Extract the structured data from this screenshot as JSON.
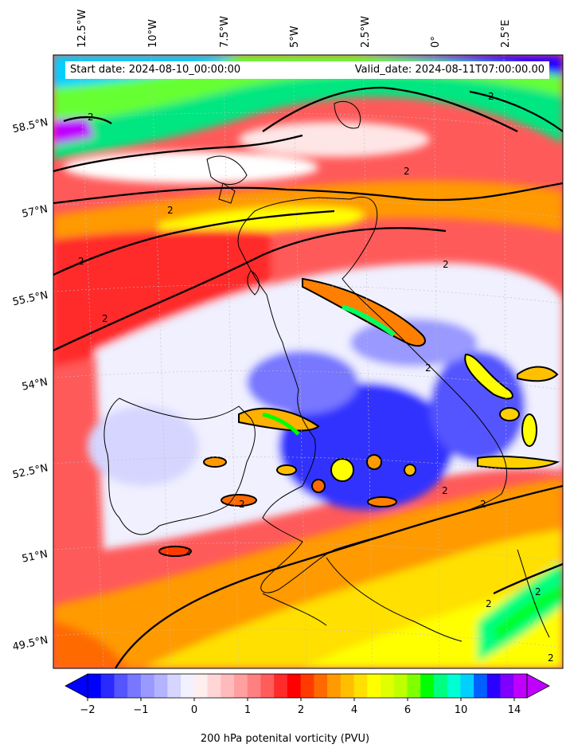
{
  "map": {
    "start_date": "Start date: 2024-08-10_00:00:00",
    "valid_date": "Valid_date: 2024-08-11T07:00:00.00",
    "lon_labels": [
      "12.5°W",
      "10°W",
      "7.5°W",
      "5°W",
      "2.5°W",
      "0°",
      "2.5°E"
    ],
    "lat_labels": [
      "58.5°N",
      "57°N",
      "55.5°N",
      "54°N",
      "52.5°N",
      "51°N",
      "49.5°N"
    ],
    "contour_label": "2"
  },
  "colorbar": {
    "title": "200 hPa potenital vorticity (PVU)",
    "tick_labels": [
      "−2",
      "−1",
      "0",
      "1",
      "2",
      "4",
      "6",
      "10",
      "14"
    ],
    "colors": [
      "#0000ff",
      "#2a2aff",
      "#5555ff",
      "#7777ff",
      "#9999ff",
      "#b3b3ff",
      "#d5d5ff",
      "#f1f1ff",
      "#ffeeee",
      "#ffd6d6",
      "#ffbbbb",
      "#ff9f9f",
      "#ff8080",
      "#ff5c5c",
      "#ff2a2a",
      "#ff0000",
      "#ff3a00",
      "#ff6a00",
      "#ff9a00",
      "#ffbf00",
      "#ffe000",
      "#ffff00",
      "#e0ff00",
      "#bfff00",
      "#80ff00",
      "#00ff00",
      "#00ff80",
      "#00ffd0",
      "#00d0ff",
      "#0060ff",
      "#2a00ff",
      "#8000ff",
      "#c000ff"
    ]
  }
}
